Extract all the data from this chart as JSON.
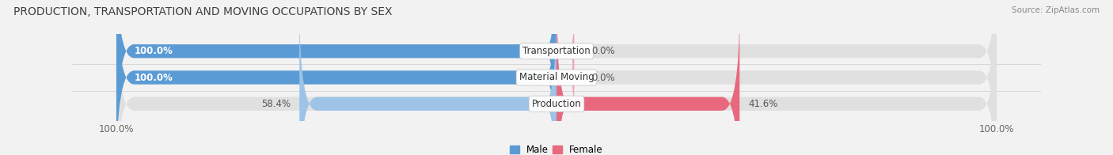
{
  "title": "PRODUCTION, TRANSPORTATION AND MOVING OCCUPATIONS BY SEX",
  "source": "Source: ZipAtlas.com",
  "categories": [
    "Transportation",
    "Material Moving",
    "Production"
  ],
  "male_values": [
    100.0,
    100.0,
    58.4
  ],
  "female_values": [
    0.0,
    0.0,
    41.6
  ],
  "male_color_dark": "#5B9BD5",
  "male_color_light": "#9DC3E6",
  "female_color_pink_light": "#F4A0B8",
  "female_color_pink_dark": "#E8697D",
  "bar_bg_color": "#E0E0E0",
  "fig_bg_color": "#F2F2F2",
  "bar_height": 0.52,
  "title_fontsize": 10,
  "label_fontsize": 8.5,
  "tick_fontsize": 8.5
}
